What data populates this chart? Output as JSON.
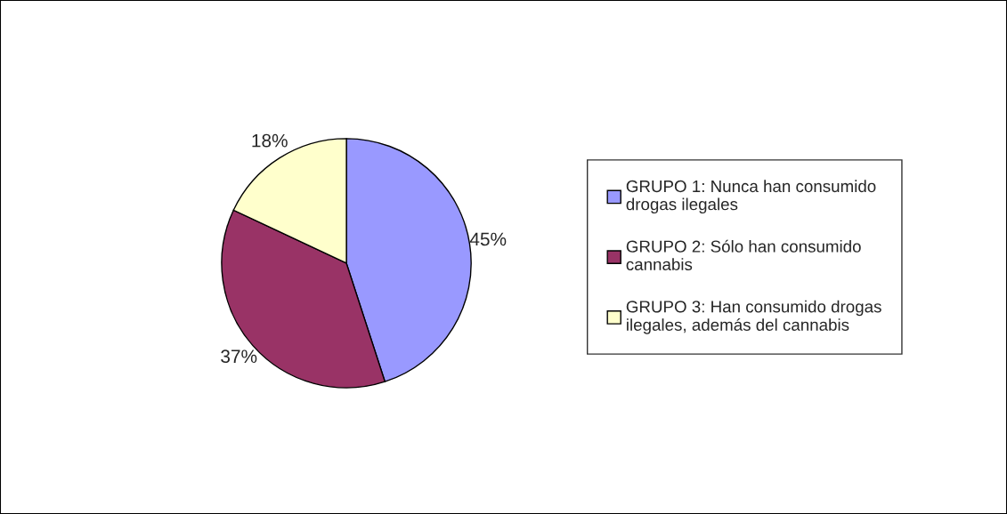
{
  "chart_data": {
    "type": "pie",
    "categories": [
      "GRUPO 1: Nunca han consumido drogas ilegales",
      "GRUPO 2: Sólo han consumido cannabis",
      "GRUPO 3: Han consumido drogas ilegales, además del cannabis"
    ],
    "values": [
      45,
      37,
      18
    ],
    "colors": [
      "#9999ff",
      "#993366",
      "#ffffcc"
    ],
    "value_labels": [
      "45%",
      "37%",
      "18%"
    ],
    "legend": "right"
  }
}
